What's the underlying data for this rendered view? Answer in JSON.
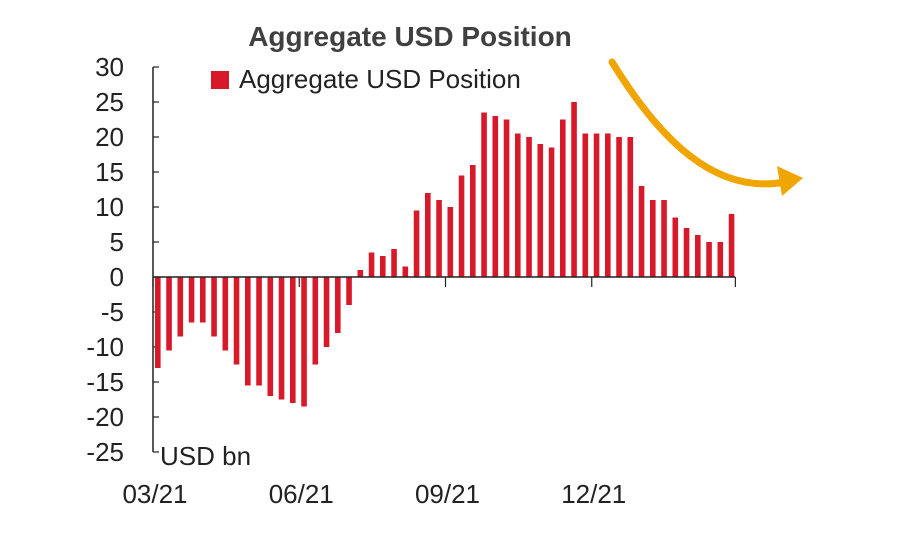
{
  "chart_data": {
    "type": "bar",
    "title": "Aggregate USD Position",
    "ylabel": "USD bn",
    "xlabel": "",
    "ylim": [
      -25,
      30
    ],
    "yticks": [
      30,
      25,
      20,
      15,
      10,
      5,
      0,
      -5,
      -10,
      -15,
      -20,
      -25
    ],
    "xtick_labels": [
      "03/21",
      "06/21",
      "09/21",
      "12/21"
    ],
    "xtick_positions": [
      0,
      13,
      26,
      39
    ],
    "legend_position": "top",
    "series": [
      {
        "name": "Aggregate USD Position",
        "color": "#d7192a",
        "values": [
          -13,
          -10.5,
          -8.5,
          -6.5,
          -6.5,
          -8.5,
          -10.5,
          -12.5,
          -15.5,
          -15.5,
          -17,
          -17.5,
          -18,
          -18.5,
          -12.5,
          -10,
          -8,
          -4,
          1,
          3.5,
          3,
          4,
          1.5,
          9.5,
          12,
          11,
          10,
          14.5,
          16,
          23.5,
          23,
          22.5,
          20.5,
          20,
          19,
          18.5,
          22.5,
          25,
          20.5,
          20.5,
          20.5,
          20,
          20,
          13,
          11,
          11,
          8.5,
          7,
          6,
          5,
          5,
          9
        ]
      }
    ],
    "annotation": {
      "type": "arrow",
      "meaning": "downward trend",
      "color": "#f0a500"
    }
  }
}
